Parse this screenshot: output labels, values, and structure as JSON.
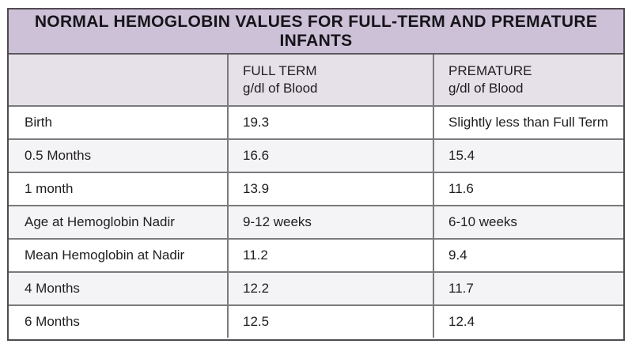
{
  "chart_data": {
    "type": "table",
    "title": "NORMAL HEMOGLOBIN VALUES FOR FULL-TERM AND PREMATURE INFANTS",
    "columns": [
      {
        "label": ""
      },
      {
        "label": "FULL TERM",
        "sublabel": "g/dl of Blood"
      },
      {
        "label": "PREMATURE",
        "sublabel": "g/dl of Blood"
      }
    ],
    "rows": [
      {
        "label": "Birth",
        "full_term": "19.3",
        "premature": "Slightly less than Full Term"
      },
      {
        "label": "0.5 Months",
        "full_term": "16.6",
        "premature": "15.4"
      },
      {
        "label": "1 month",
        "full_term": "13.9",
        "premature": "11.6"
      },
      {
        "label": "Age at Hemoglobin Nadir",
        "full_term": "9-12 weeks",
        "premature": "6-10 weeks"
      },
      {
        "label": "Mean Hemoglobin at Nadir",
        "full_term": "11.2",
        "premature": "9.4"
      },
      {
        "label": "4 Months",
        "full_term": "12.2",
        "premature": "11.7"
      },
      {
        "label": "6 Months",
        "full_term": "12.5",
        "premature": "12.4"
      }
    ],
    "layout": {
      "legend": "none",
      "grid": "full-borders",
      "row_striping": "alternating"
    }
  },
  "colors": {
    "title_bg": "#ccc1d7",
    "header_bg": "#e6e1e8",
    "row_odd_bg": "#ffffff",
    "row_even_bg": "#f4f3f5",
    "border_outer": "#4f4b51",
    "border_inner": "#7b7a7c",
    "text": "#1f1d20"
  }
}
